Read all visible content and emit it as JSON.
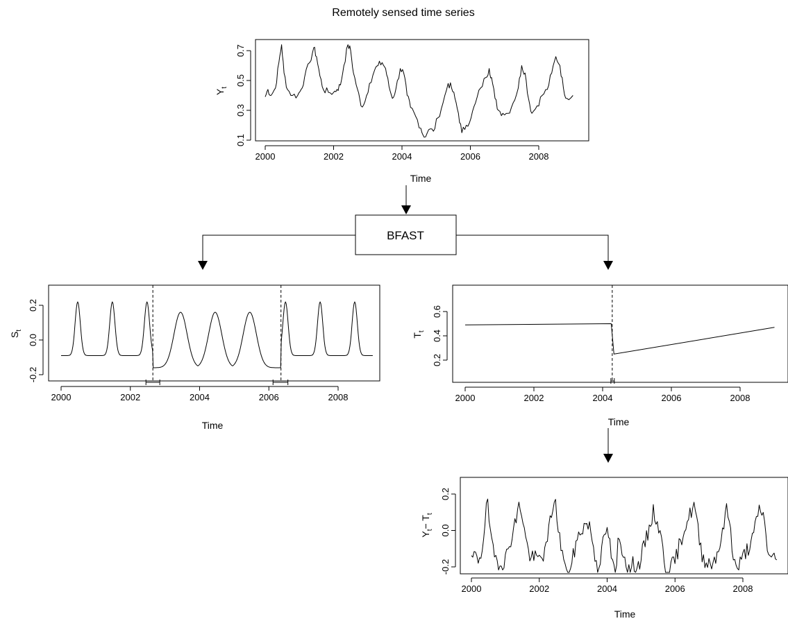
{
  "diagram": {
    "title": "Remotely sensed time series",
    "process_box_label": "BFAST"
  },
  "chart_data": [
    {
      "id": "yt",
      "type": "line",
      "title": "",
      "xlabel": "Time",
      "ylabel": "Y_t",
      "xlim": [
        2000,
        2009
      ],
      "ylim": [
        0.1,
        0.78
      ],
      "x_ticks": [
        "2000",
        "2002",
        "2004",
        "2006",
        "2008"
      ],
      "y_ticks": [
        "0.1",
        "0.3",
        "0.5",
        "0.7"
      ],
      "knots": [
        [
          2000.0,
          0.39
        ],
        [
          2000.08,
          0.44
        ],
        [
          2000.17,
          0.4
        ],
        [
          2000.3,
          0.45
        ],
        [
          2000.4,
          0.62
        ],
        [
          2000.48,
          0.74
        ],
        [
          2000.55,
          0.55
        ],
        [
          2000.65,
          0.44
        ],
        [
          2000.8,
          0.4
        ],
        [
          2000.95,
          0.4
        ],
        [
          2001.05,
          0.44
        ],
        [
          2001.15,
          0.52
        ],
        [
          2001.3,
          0.62
        ],
        [
          2001.42,
          0.72
        ],
        [
          2001.5,
          0.66
        ],
        [
          2001.6,
          0.53
        ],
        [
          2001.7,
          0.44
        ],
        [
          2001.85,
          0.42
        ],
        [
          2002.0,
          0.42
        ],
        [
          2002.1,
          0.44
        ],
        [
          2002.2,
          0.47
        ],
        [
          2002.3,
          0.6
        ],
        [
          2002.42,
          0.74
        ],
        [
          2002.5,
          0.7
        ],
        [
          2002.58,
          0.55
        ],
        [
          2002.7,
          0.44
        ],
        [
          2002.8,
          0.33
        ],
        [
          2002.92,
          0.36
        ],
        [
          2003.05,
          0.48
        ],
        [
          2003.2,
          0.57
        ],
        [
          2003.3,
          0.6
        ],
        [
          2003.42,
          0.62
        ],
        [
          2003.52,
          0.58
        ],
        [
          2003.62,
          0.46
        ],
        [
          2003.72,
          0.38
        ],
        [
          2003.82,
          0.44
        ],
        [
          2003.95,
          0.58
        ],
        [
          2004.05,
          0.55
        ],
        [
          2004.15,
          0.4
        ],
        [
          2004.25,
          0.32
        ],
        [
          2004.4,
          0.26
        ],
        [
          2004.55,
          0.18
        ],
        [
          2004.65,
          0.12
        ],
        [
          2004.78,
          0.17
        ],
        [
          2004.92,
          0.16
        ],
        [
          2005.05,
          0.25
        ],
        [
          2005.2,
          0.35
        ],
        [
          2005.35,
          0.48
        ],
        [
          2005.45,
          0.45
        ],
        [
          2005.55,
          0.38
        ],
        [
          2005.65,
          0.28
        ],
        [
          2005.75,
          0.15
        ],
        [
          2005.88,
          0.2
        ],
        [
          2006.02,
          0.25
        ],
        [
          2006.15,
          0.35
        ],
        [
          2006.3,
          0.45
        ],
        [
          2006.45,
          0.52
        ],
        [
          2006.55,
          0.58
        ],
        [
          2006.62,
          0.52
        ],
        [
          2006.72,
          0.38
        ],
        [
          2006.82,
          0.3
        ],
        [
          2006.95,
          0.28
        ],
        [
          2007.1,
          0.28
        ],
        [
          2007.25,
          0.35
        ],
        [
          2007.4,
          0.45
        ],
        [
          2007.5,
          0.6
        ],
        [
          2007.6,
          0.55
        ],
        [
          2007.7,
          0.38
        ],
        [
          2007.8,
          0.28
        ],
        [
          2007.95,
          0.33
        ],
        [
          2008.1,
          0.4
        ],
        [
          2008.25,
          0.44
        ],
        [
          2008.38,
          0.55
        ],
        [
          2008.5,
          0.66
        ],
        [
          2008.62,
          0.6
        ],
        [
          2008.72,
          0.45
        ],
        [
          2008.82,
          0.38
        ],
        [
          2009.0,
          0.4
        ]
      ]
    },
    {
      "id": "st",
      "type": "line",
      "title": "",
      "xlabel": "Time",
      "ylabel": "S_t",
      "xlim": [
        2000,
        2009
      ],
      "ylim": [
        -0.25,
        0.28
      ],
      "x_ticks": [
        "2000",
        "2002",
        "2004",
        "2006",
        "2008"
      ],
      "y_ticks": [
        "-0.2",
        "0.0",
        "0.2"
      ],
      "peaks_segment1": [
        2000.48,
        2001.48,
        2002.48
      ],
      "peaks_segment2": [
        2003.45,
        2004.45,
        2005.45
      ],
      "peaks_segment3": [
        2006.48,
        2007.48,
        2008.48
      ],
      "breakpoints": [
        2002.65,
        2006.35
      ],
      "confidence_intervals": [
        [
          2002.45,
          2002.85
        ],
        [
          2006.12,
          2006.55
        ]
      ]
    },
    {
      "id": "tt",
      "type": "line",
      "title": "",
      "xlabel": "Time",
      "ylabel": "T_t",
      "xlim": [
        2000,
        2009
      ],
      "ylim": [
        0.1,
        0.78
      ],
      "x_ticks": [
        "2000",
        "2002",
        "2004",
        "2006",
        "2008"
      ],
      "y_ticks": [
        "0.2",
        "0.4",
        "0.6"
      ],
      "segments": [
        [
          [
            2000.0,
            0.49
          ],
          [
            2004.25,
            0.5
          ]
        ],
        [
          [
            2004.25,
            0.5
          ],
          [
            2004.33,
            0.25
          ],
          [
            2009.0,
            0.47
          ]
        ]
      ],
      "breakpoints": [
        2004.28
      ],
      "confidence_intervals": [
        [
          2004.24,
          2004.34
        ]
      ]
    },
    {
      "id": "et",
      "type": "line",
      "title": "",
      "xlabel": "Time",
      "ylabel": "Y_t - T_t",
      "xlim": [
        2000,
        2009
      ],
      "ylim": [
        -0.24,
        0.29
      ],
      "x_ticks": [
        "2000",
        "2002",
        "2004",
        "2006",
        "2008"
      ],
      "y_ticks": [
        "-0.2",
        "0.0",
        "0.2"
      ]
    }
  ]
}
